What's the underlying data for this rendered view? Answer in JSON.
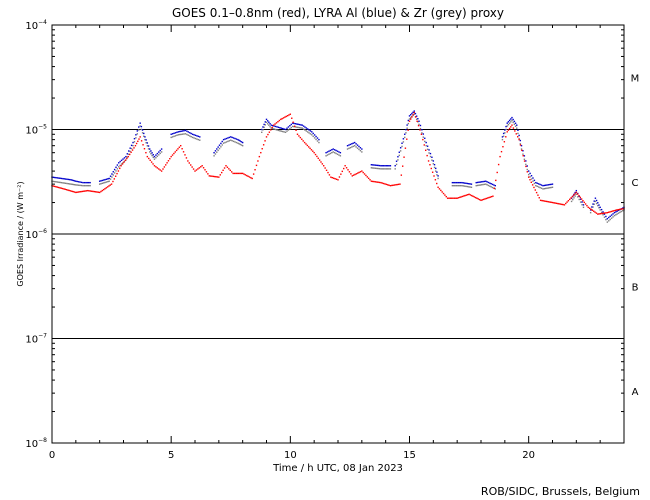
{
  "title": "GOES 0.1–0.8nm (red), LYRA Al (blue) & Zr (grey) proxy",
  "credit": "ROB/SIDC, Brussels, Belgium",
  "chart_data": {
    "type": "line",
    "title": "GOES 0.1–0.8nm (red), LYRA Al (blue) & Zr (grey) proxy",
    "xlabel": "Time / h UTC, 08 Jan 2023",
    "ylabel": "GOES Irradiance / (W m⁻²)",
    "xlim": [
      0,
      24
    ],
    "ylim": [
      1e-08,
      0.0001
    ],
    "yscale": "log",
    "x_ticks": [
      {
        "value": 0,
        "label": "0"
      },
      {
        "value": 5,
        "label": "5"
      },
      {
        "value": 10,
        "label": "10"
      },
      {
        "value": 15,
        "label": "15"
      },
      {
        "value": 20,
        "label": "20"
      }
    ],
    "y_ticks": [
      {
        "exponent": -8,
        "mantissa": "10",
        "exp_label": "−8"
      },
      {
        "exponent": -7,
        "mantissa": "10",
        "exp_label": "−7"
      },
      {
        "exponent": -6,
        "mantissa": "10",
        "exp_label": "−6"
      },
      {
        "exponent": -5,
        "mantissa": "10",
        "exp_label": "−5"
      },
      {
        "exponent": -4,
        "mantissa": "10",
        "exp_label": "−4"
      }
    ],
    "class_thresholds": [
      1e-07,
      1e-06,
      1e-05
    ],
    "flare_classes": [
      {
        "label": "A",
        "center_exp": -7.5
      },
      {
        "label": "B",
        "center_exp": -6.5
      },
      {
        "label": "C",
        "center_exp": -5.5
      },
      {
        "label": "M",
        "center_exp": -4.5
      }
    ],
    "series": [
      {
        "name": "GOES 0.1–0.8nm",
        "color": "#ff0000",
        "style": "dots",
        "x": [
          0.0,
          0.5,
          1.0,
          1.5,
          2.0,
          2.5,
          2.9,
          3.2,
          3.5,
          3.7,
          4.0,
          4.3,
          4.6,
          5.0,
          5.4,
          5.7,
          6.0,
          6.3,
          6.6,
          7.0,
          7.3,
          7.6,
          8.0,
          8.4,
          8.7,
          9.0,
          9.3,
          9.6,
          10.0,
          10.3,
          10.6,
          11.0,
          11.4,
          11.7,
          12.0,
          12.3,
          12.6,
          13.0,
          13.4,
          13.8,
          14.2,
          14.6,
          15.0,
          15.2,
          15.5,
          15.8,
          16.2,
          16.6,
          17.0,
          17.5,
          18.0,
          18.5,
          18.8,
          19.1,
          19.3,
          19.6,
          20.0,
          20.5,
          21.0,
          21.5,
          22.0,
          22.5,
          22.9,
          23.3,
          23.7,
          24.0
        ],
        "y": [
          2.9e-06,
          2.7e-06,
          2.5e-06,
          2.6e-06,
          2.5e-06,
          3e-06,
          4.5e-06,
          5.5e-06,
          7e-06,
          8.5e-06,
          5.5e-06,
          4.5e-06,
          4e-06,
          5.5e-06,
          7e-06,
          5e-06,
          4e-06,
          4.5e-06,
          3.6e-06,
          3.5e-06,
          4.5e-06,
          3.8e-06,
          3.8e-06,
          3.4e-06,
          5.5e-06,
          8.5e-06,
          1.1e-05,
          1.25e-05,
          1.4e-05,
          9e-06,
          7.5e-06,
          6e-06,
          4.5e-06,
          3.5e-06,
          3.3e-06,
          4.5e-06,
          3.6e-06,
          4e-06,
          3.2e-06,
          3.1e-06,
          2.9e-06,
          3e-06,
          1.2e-05,
          1.45e-05,
          9e-06,
          5e-06,
          2.8e-06,
          2.2e-06,
          2.2e-06,
          2.4e-06,
          2.1e-06,
          2.3e-06,
          5.5e-06,
          9.5e-06,
          1.1e-05,
          8e-06,
          3.5e-06,
          2.1e-06,
          2e-06,
          1.9e-06,
          2.5e-06,
          1.8e-06,
          1.55e-06,
          1.6e-06,
          1.7e-06,
          1.75e-06
        ]
      },
      {
        "name": "LYRA Al proxy",
        "color": "#0000cc",
        "style": "dots",
        "segments": [
          {
            "x": [
              0.0,
              0.4,
              0.8,
              1.0,
              1.3,
              1.6
            ],
            "y": [
              3.5e-06,
              3.4e-06,
              3.3e-06,
              3.2e-06,
              3.1e-06,
              3.1e-06
            ]
          },
          {
            "x": [
              2.0,
              2.4,
              2.8,
              3.1,
              3.4,
              3.7,
              3.9,
              4.1,
              4.3,
              4.6
            ],
            "y": [
              3.2e-06,
              3.4e-06,
              4.8e-06,
              5.5e-06,
              7.5e-06,
              1.15e-05,
              8.5e-06,
              6.5e-06,
              5.5e-06,
              6.5e-06
            ]
          },
          {
            "x": [
              5.0,
              5.3,
              5.6,
              5.9,
              6.2
            ],
            "y": [
              9e-06,
              9.5e-06,
              9.8e-06,
              9e-06,
              8.5e-06
            ]
          },
          {
            "x": [
              6.8,
              7.2,
              7.5,
              7.8,
              8.0
            ],
            "y": [
              6e-06,
              8e-06,
              8.5e-06,
              8e-06,
              7.5e-06
            ]
          },
          {
            "x": [
              8.8,
              9.0,
              9.2,
              9.5,
              9.8,
              10.1,
              10.5,
              10.9,
              11.2
            ],
            "y": [
              1e-05,
              1.25e-05,
              1.1e-05,
              1.05e-05,
              1e-05,
              1.15e-05,
              1.1e-05,
              9.5e-06,
              8e-06
            ]
          },
          {
            "x": [
              11.5,
              11.8,
              12.1
            ],
            "y": [
              6e-06,
              6.5e-06,
              6e-06
            ]
          },
          {
            "x": [
              12.4,
              12.7,
              13.0
            ],
            "y": [
              7e-06,
              7.5e-06,
              6.5e-06
            ]
          },
          {
            "x": [
              13.4,
              13.8,
              14.2
            ],
            "y": [
              4.6e-06,
              4.5e-06,
              4.5e-06
            ]
          },
          {
            "x": [
              14.4,
              14.8,
              15.0,
              15.2,
              15.4,
              15.7,
              16.0,
              16.2
            ],
            "y": [
              4.5e-06,
              9e-06,
              1.35e-05,
              1.5e-05,
              1.2e-05,
              7.5e-06,
              5e-06,
              3.6e-06
            ]
          },
          {
            "x": [
              16.8,
              17.2,
              17.6
            ],
            "y": [
              3.1e-06,
              3.1e-06,
              3e-06
            ]
          },
          {
            "x": [
              17.8,
              18.2,
              18.6
            ],
            "y": [
              3.1e-06,
              3.2e-06,
              2.9e-06
            ]
          },
          {
            "x": [
              18.9,
              19.1,
              19.3,
              19.5,
              19.7,
              20.0,
              20.3,
              20.6,
              21.0
            ],
            "y": [
              8.5e-06,
              1.15e-05,
              1.3e-05,
              1.1e-05,
              7e-06,
              4e-06,
              3.1e-06,
              2.9e-06,
              3e-06
            ]
          },
          {
            "x": [
              21.8,
              22.0,
              22.3
            ],
            "y": [
              2.2e-06,
              2.6e-06,
              1.9e-06
            ]
          },
          {
            "x": [
              22.6,
              22.8,
              23.0,
              23.3,
              23.6,
              24.0
            ],
            "y": [
              1.7e-06,
              2.2e-06,
              1.8e-06,
              1.4e-06,
              1.6e-06,
              1.8e-06
            ]
          }
        ]
      },
      {
        "name": "LYRA Zr proxy",
        "color": "#808080",
        "style": "dots",
        "segments": [
          {
            "x": [
              0.0,
              0.4,
              0.8,
              1.0,
              1.3,
              1.6
            ],
            "y": [
              3.2e-06,
              3.1e-06,
              3e-06,
              2.95e-06,
              2.9e-06,
              2.9e-06
            ]
          },
          {
            "x": [
              2.0,
              2.4,
              2.8,
              3.1,
              3.4,
              3.7,
              3.9,
              4.1,
              4.3,
              4.6
            ],
            "y": [
              3e-06,
              3.2e-06,
              4.4e-06,
              5.1e-06,
              7e-06,
              1.08e-05,
              8e-06,
              6.1e-06,
              5.2e-06,
              6.1e-06
            ]
          },
          {
            "x": [
              5.0,
              5.3,
              5.6,
              5.9,
              6.2
            ],
            "y": [
              8.4e-06,
              8.9e-06,
              9.1e-06,
              8.4e-06,
              7.9e-06
            ]
          },
          {
            "x": [
              6.8,
              7.2,
              7.5,
              7.8,
              8.0
            ],
            "y": [
              5.6e-06,
              7.4e-06,
              7.9e-06,
              7.4e-06,
              7e-06
            ]
          },
          {
            "x": [
              8.8,
              9.0,
              9.2,
              9.5,
              9.8,
              10.1,
              10.5,
              10.9,
              11.2
            ],
            "y": [
              9.4e-06,
              1.17e-05,
              1.03e-05,
              9.8e-06,
              9.4e-06,
              1.07e-05,
              1.03e-05,
              8.9e-06,
              7.5e-06
            ]
          },
          {
            "x": [
              11.5,
              11.8,
              12.1
            ],
            "y": [
              5.6e-06,
              6.1e-06,
              5.6e-06
            ]
          },
          {
            "x": [
              12.4,
              12.7,
              13.0
            ],
            "y": [
              6.5e-06,
              7e-06,
              6.1e-06
            ]
          },
          {
            "x": [
              13.4,
              13.8,
              14.2
            ],
            "y": [
              4.3e-06,
              4.2e-06,
              4.2e-06
            ]
          },
          {
            "x": [
              14.4,
              14.8,
              15.0,
              15.2,
              15.4,
              15.7,
              16.0,
              16.2
            ],
            "y": [
              4.2e-06,
              8.4e-06,
              1.26e-05,
              1.4e-05,
              1.12e-05,
              7e-06,
              4.7e-06,
              3.4e-06
            ]
          },
          {
            "x": [
              16.8,
              17.2,
              17.6
            ],
            "y": [
              2.9e-06,
              2.9e-06,
              2.8e-06
            ]
          },
          {
            "x": [
              17.8,
              18.2,
              18.6
            ],
            "y": [
              2.9e-06,
              3e-06,
              2.7e-06
            ]
          },
          {
            "x": [
              18.9,
              19.1,
              19.3,
              19.5,
              19.7,
              20.0,
              20.3,
              20.6,
              21.0
            ],
            "y": [
              8e-06,
              1.08e-05,
              1.22e-05,
              1.03e-05,
              6.5e-06,
              3.7e-06,
              2.9e-06,
              2.7e-06,
              2.8e-06
            ]
          },
          {
            "x": [
              21.8,
              22.0,
              22.3
            ],
            "y": [
              2.05e-06,
              2.4e-06,
              1.8e-06
            ]
          },
          {
            "x": [
              22.6,
              22.8,
              23.0,
              23.3,
              23.6,
              24.0
            ],
            "y": [
              1.6e-06,
              2.05e-06,
              1.7e-06,
              1.3e-06,
              1.5e-06,
              1.7e-06
            ]
          }
        ]
      }
    ]
  }
}
